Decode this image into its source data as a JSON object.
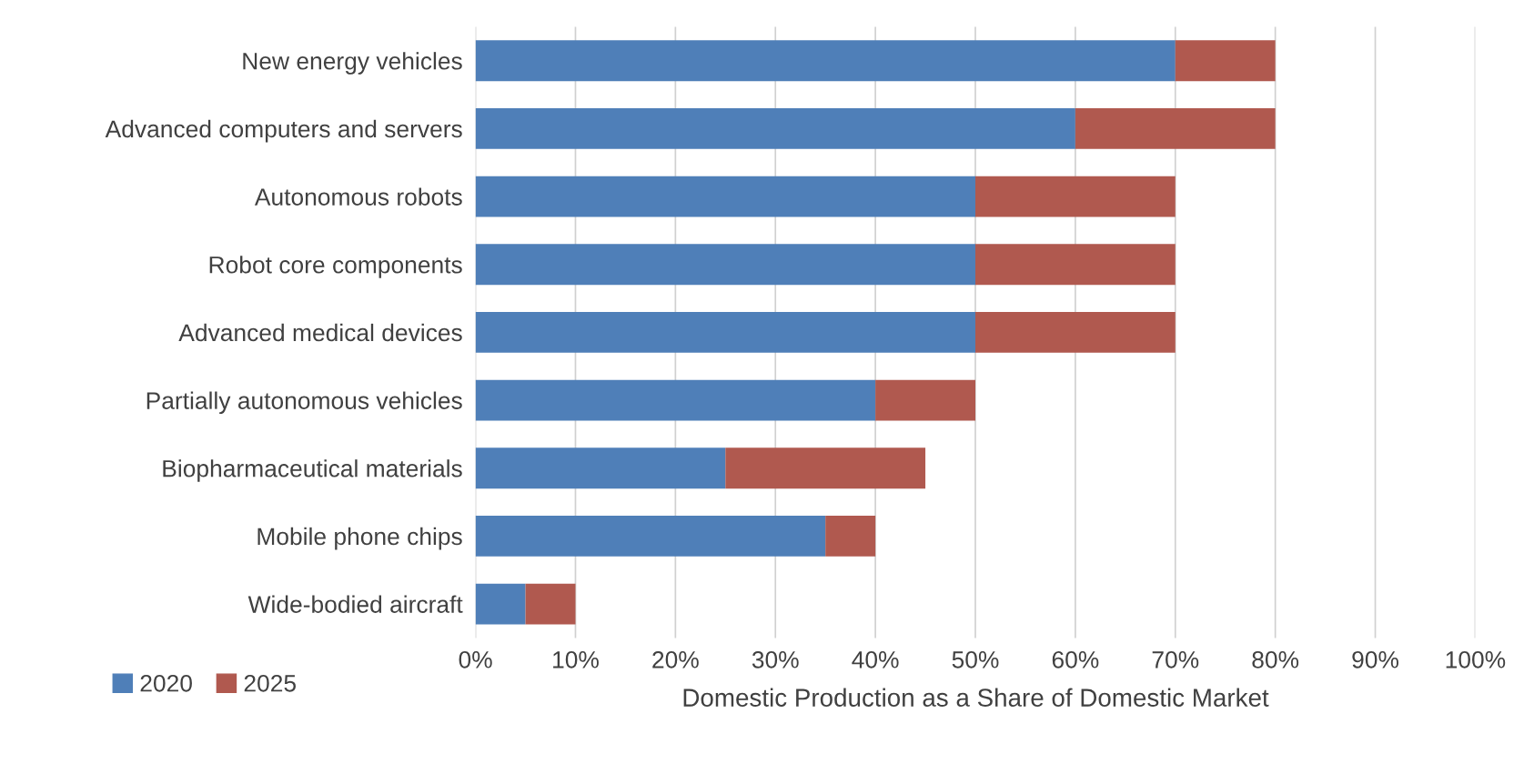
{
  "chart_data": {
    "type": "bar",
    "orientation": "horizontal",
    "stacked": true,
    "xlabel": "Domestic Production as a Share of Domestic Market",
    "categories": [
      "New energy vehicles",
      "Advanced computers and servers",
      "Autonomous robots",
      "Robot core components",
      "Advanced medical devices",
      "Partially autonomous vehicles",
      "Biopharmaceutical materials",
      "Mobile phone chips",
      "Wide-bodied aircraft"
    ],
    "series": [
      {
        "name": "2020",
        "color": "#4f7fb8",
        "values": [
          70,
          60,
          50,
          50,
          50,
          40,
          25,
          35,
          5
        ]
      },
      {
        "name": "2025",
        "color": "#b0594f",
        "values": [
          10,
          20,
          20,
          20,
          20,
          10,
          20,
          5,
          5
        ]
      }
    ],
    "xlim": [
      0,
      100
    ],
    "xticks": [
      {
        "value": 0,
        "label": "0%"
      },
      {
        "value": 10,
        "label": "10%"
      },
      {
        "value": 20,
        "label": "20%"
      },
      {
        "value": 30,
        "label": "30%"
      },
      {
        "value": 40,
        "label": "40%"
      },
      {
        "value": 50,
        "label": "50%"
      },
      {
        "value": 60,
        "label": "60%"
      },
      {
        "value": 70,
        "label": "70%"
      },
      {
        "value": 80,
        "label": "80%"
      },
      {
        "value": 90,
        "label": "90%"
      },
      {
        "value": 100,
        "label": "100%"
      }
    ],
    "grid": "x",
    "legend": "bottom left"
  }
}
